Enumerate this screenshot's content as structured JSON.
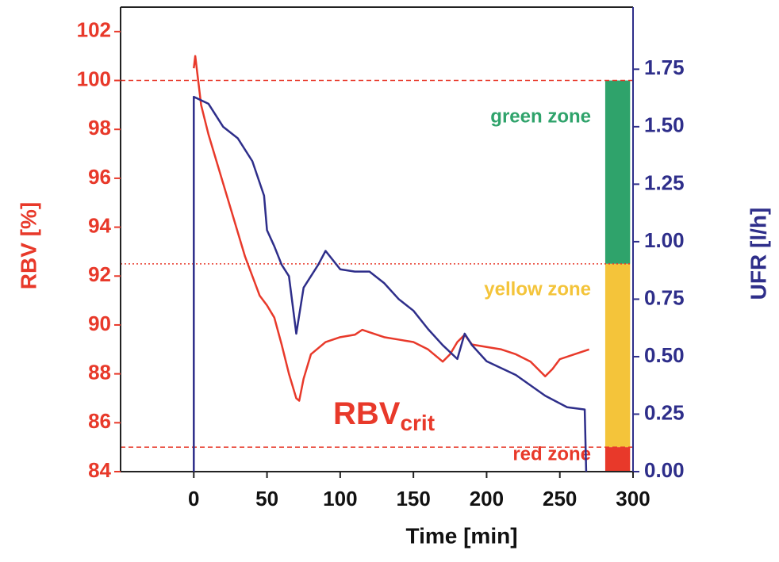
{
  "chart_data": {
    "type": "line",
    "xlabel": "Time [min]",
    "ylabel": "RBV [%]",
    "y2label": "UFR [l/h]",
    "xlim": [
      -50,
      300
    ],
    "xticks": [
      0,
      50,
      100,
      150,
      200,
      250,
      300
    ],
    "ylim": [
      84,
      103
    ],
    "yticks": [
      84,
      86,
      88,
      90,
      92,
      94,
      96,
      98,
      100,
      102
    ],
    "y2lim": [
      0,
      2.02
    ],
    "y2ticks": [
      {
        "value": 0,
        "label": "0.00"
      },
      0.25,
      {
        "value": 0.5,
        "label": "0.50"
      },
      0.75,
      {
        "value": 1,
        "label": "1.00"
      },
      1.25,
      {
        "value": 1.5,
        "label": "1.50"
      },
      1.75
    ],
    "series": [
      {
        "color": "#e8392a",
        "x": [
          0,
          1,
          3,
          5,
          10,
          15,
          20,
          25,
          30,
          35,
          40,
          45,
          50,
          55,
          60,
          65,
          70,
          72,
          75,
          80,
          90,
          100,
          110,
          115,
          120,
          130,
          140,
          150,
          160,
          170,
          175,
          180,
          185,
          190,
          200,
          210,
          220,
          230,
          240,
          245,
          250,
          260,
          270
        ],
        "values": [
          100.5,
          101,
          100,
          99,
          97.8,
          96.8,
          95.8,
          94.8,
          93.8,
          92.8,
          92,
          91.2,
          90.8,
          90.3,
          89.2,
          88,
          87,
          86.9,
          87.8,
          88.8,
          89.3,
          89.5,
          89.6,
          89.8,
          89.7,
          89.5,
          89.4,
          89.3,
          89,
          88.5,
          88.8,
          89.3,
          89.6,
          89.2,
          89.1,
          89,
          88.8,
          88.5,
          87.9,
          88.2,
          88.6,
          88.8,
          89
        ]
      },
      {
        "color": "#2e2e8a",
        "axis": "y2",
        "x": [
          0,
          0,
          10,
          20,
          30,
          40,
          48,
          50,
          55,
          60,
          65,
          70,
          72,
          75,
          85,
          90,
          100,
          110,
          120,
          130,
          140,
          150,
          160,
          170,
          180,
          185,
          190,
          200,
          220,
          240,
          255,
          267,
          268
        ],
        "values": [
          0,
          1.63,
          1.6,
          1.5,
          1.45,
          1.35,
          1.2,
          1.05,
          0.98,
          0.9,
          0.85,
          0.6,
          0.68,
          0.8,
          0.9,
          0.96,
          0.88,
          0.87,
          0.87,
          0.82,
          0.75,
          0.7,
          0.62,
          0.55,
          0.49,
          0.6,
          0.55,
          0.48,
          0.42,
          0.33,
          0.28,
          0.27,
          0
        ]
      }
    ],
    "reference_lines": [
      {
        "value": 100,
        "style": "dashed"
      },
      {
        "value": 92.5,
        "style": "dotted"
      },
      {
        "value": 85,
        "style": "dashed"
      }
    ],
    "zones": [
      {
        "label": "green zone",
        "from": 92.5,
        "to": 100,
        "color": "#2fa36b",
        "label_color": "#2fa36b"
      },
      {
        "label": "yellow zone",
        "from": 85,
        "to": 92.5,
        "color": "#f4c43a",
        "label_color": "#f4c43a"
      },
      {
        "label": "red zone",
        "from": 84,
        "to": 85,
        "color": "#e8392a",
        "label_color": "#e8392a"
      }
    ],
    "zone_x": [
      281,
      298
    ],
    "annotation": {
      "text": "RBV",
      "subscript": "crit"
    }
  }
}
